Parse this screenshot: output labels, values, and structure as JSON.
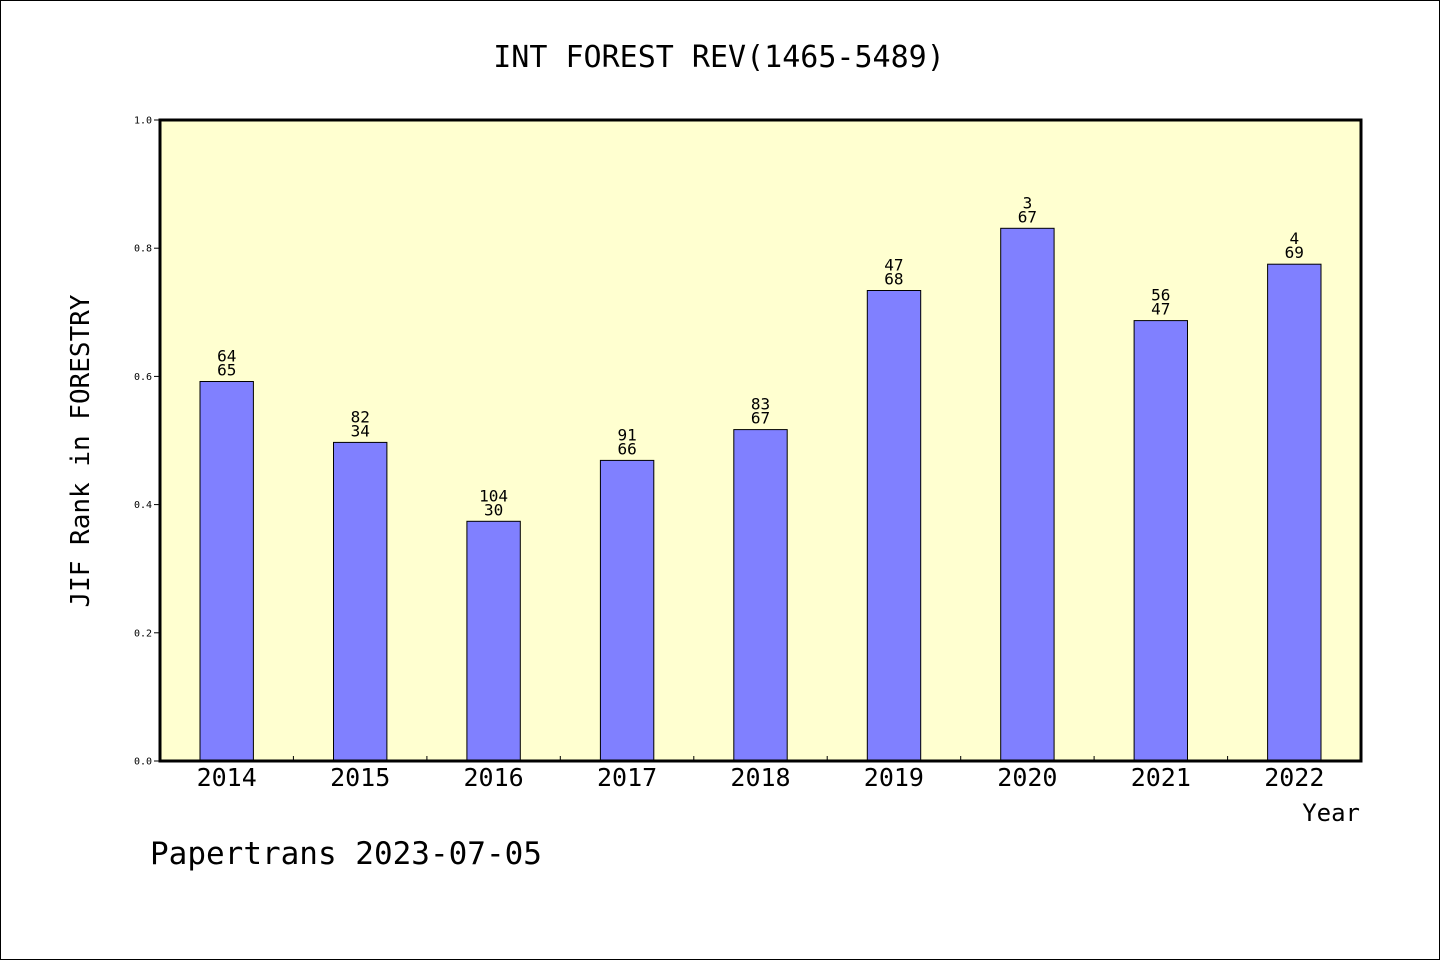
{
  "chart_data": {
    "type": "bar",
    "title": "INT FOREST REV(1465-5489)",
    "xlabel": "Year",
    "ylabel": "JIF Rank in FORESTRY",
    "categories": [
      "2014",
      "2015",
      "2016",
      "2017",
      "2018",
      "2019",
      "2020",
      "2021",
      "2022"
    ],
    "values": [
      0.592,
      0.497,
      0.374,
      0.469,
      0.517,
      0.734,
      0.831,
      0.687,
      0.775
    ],
    "rank_labels": [
      "64",
      "82",
      "104",
      "91",
      "83",
      "47",
      "3",
      "56",
      "4"
    ],
    "total_labels": [
      "65",
      "34",
      "30",
      "66",
      "67",
      "68",
      "67",
      "47",
      "69"
    ],
    "ylim": [
      0,
      1.0
    ],
    "yticks": [
      "0.0",
      "0.2",
      "0.4",
      "0.6",
      "0.8",
      "1.0"
    ],
    "bar_color": "#8080ff",
    "plot_background": "#ffffd0",
    "grid": false
  },
  "footer": "Papertrans 2023-07-05"
}
